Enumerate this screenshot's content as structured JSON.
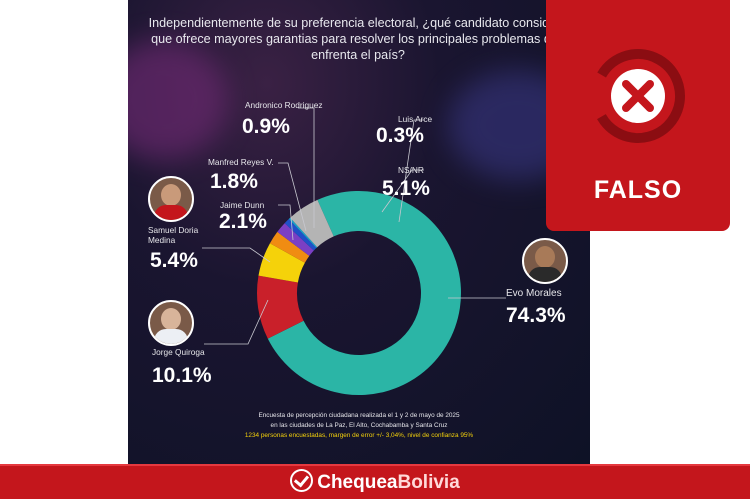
{
  "poster": {
    "question": "Independientemente de su preferencia electoral, ¿qué candidato considera que ofrece mayores garantias para resolver los principales problemas que enfrenta el país?",
    "footnote_line1": "Encuesta de percepción ciudadana realizada el 1 y 2 de mayo de 2025",
    "footnote_line2": "en las ciudades de La Paz, El Alto, Cochabamba y Santa Cruz",
    "footnote_line3": "1234 personas encuestadas, margen de error +/- 3,04%, nivel de confianza 95%"
  },
  "chart_data": {
    "type": "pie",
    "style": "donut",
    "series": [
      {
        "label": "Evo Morales",
        "value_text": "74.3%",
        "value": 74.3,
        "color": "#2bb5a6"
      },
      {
        "label": "Jorge Quiroga",
        "value_text": "10.1%",
        "value": 10.1,
        "color": "#c9202a"
      },
      {
        "label": "Samuel Doria Medina",
        "value_text": "5.4%",
        "value": 5.4,
        "color": "#f5d20a"
      },
      {
        "label": "Jaime Dunn",
        "value_text": "2.1%",
        "value": 2.1,
        "color": "#f08c12"
      },
      {
        "label": "Manfred Reyes V.",
        "value_text": "1.8%",
        "value": 1.8,
        "color": "#7b3fc4"
      },
      {
        "label": "Andronico Rodriguez",
        "value_text": "0.9%",
        "value": 0.9,
        "color": "#2050c8"
      },
      {
        "label": "Luis Arce",
        "value_text": "0.3%",
        "value": 0.3,
        "color": "#18a3c8"
      },
      {
        "label": "NS/NR",
        "value_text": "5.1%",
        "value": 5.1,
        "color": "#b4b4b4"
      }
    ]
  },
  "stamp": {
    "label": "FALSO",
    "color": "#c4161c"
  },
  "brand": {
    "name_part1": "Chequea",
    "name_part2": "Bolivia"
  },
  "colors": {
    "brand_red": "#c4161c",
    "footnote_highlight": "#f5d20a"
  }
}
